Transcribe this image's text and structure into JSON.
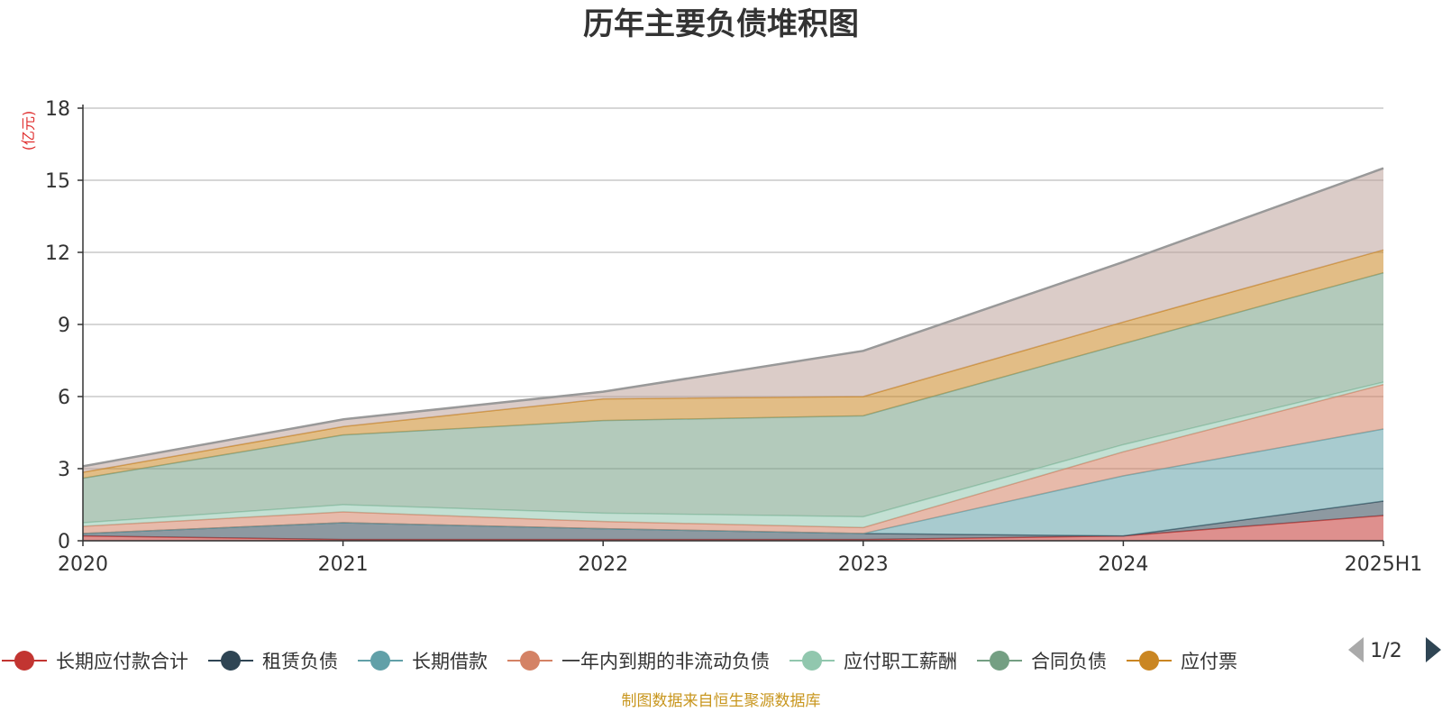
{
  "chart_data": {
    "type": "area",
    "stacked": true,
    "title": "历年主要负债堆积图",
    "unit_label": "(亿元)",
    "x": [
      "2020",
      "2021",
      "2022",
      "2023",
      "2024",
      "2025H1"
    ],
    "ylim": [
      0,
      18
    ],
    "yticks": [
      "0",
      "3",
      "6",
      "9",
      "12",
      "15",
      "18"
    ],
    "grid": true,
    "legend_position": "bottom",
    "series": [
      {
        "name": "长期应付款合计",
        "color": "#c23531",
        "values": [
          0.2,
          0.05,
          0.05,
          0.05,
          0.2,
          1.05
        ]
      },
      {
        "name": "租赁负债",
        "color": "#2f4554",
        "values": [
          0.1,
          0.7,
          0.45,
          0.25,
          0.0,
          0.6
        ]
      },
      {
        "name": "长期借款",
        "color": "#61a0a8",
        "values": [
          0.0,
          0.0,
          0.0,
          0.0,
          2.5,
          3.0
        ]
      },
      {
        "name": "一年内到期的非流动负债",
        "color": "#d48265",
        "values": [
          0.3,
          0.45,
          0.3,
          0.25,
          1.0,
          1.85
        ]
      },
      {
        "name": "应付职工薪酬",
        "color": "#91c7ae",
        "values": [
          0.15,
          0.3,
          0.35,
          0.45,
          0.3,
          0.1
        ]
      },
      {
        "name": "合同负债",
        "color": "#749f83",
        "values": [
          1.85,
          2.9,
          3.85,
          4.2,
          4.2,
          4.55
        ]
      },
      {
        "name": "应付票",
        "color": "#ca8622",
        "values": [
          0.25,
          0.35,
          0.9,
          0.8,
          0.9,
          0.95
        ]
      },
      {
        "color": "#bda29a",
        "values": [
          0.25,
          0.3,
          0.3,
          1.9,
          2.5,
          3.4
        ]
      }
    ]
  },
  "legend": {
    "pager_text": "1/2",
    "prev_icon": "triangle-left-icon",
    "next_icon": "triangle-right-icon"
  },
  "footer": {
    "source_text": "制图数据来自恒生聚源数据库"
  }
}
